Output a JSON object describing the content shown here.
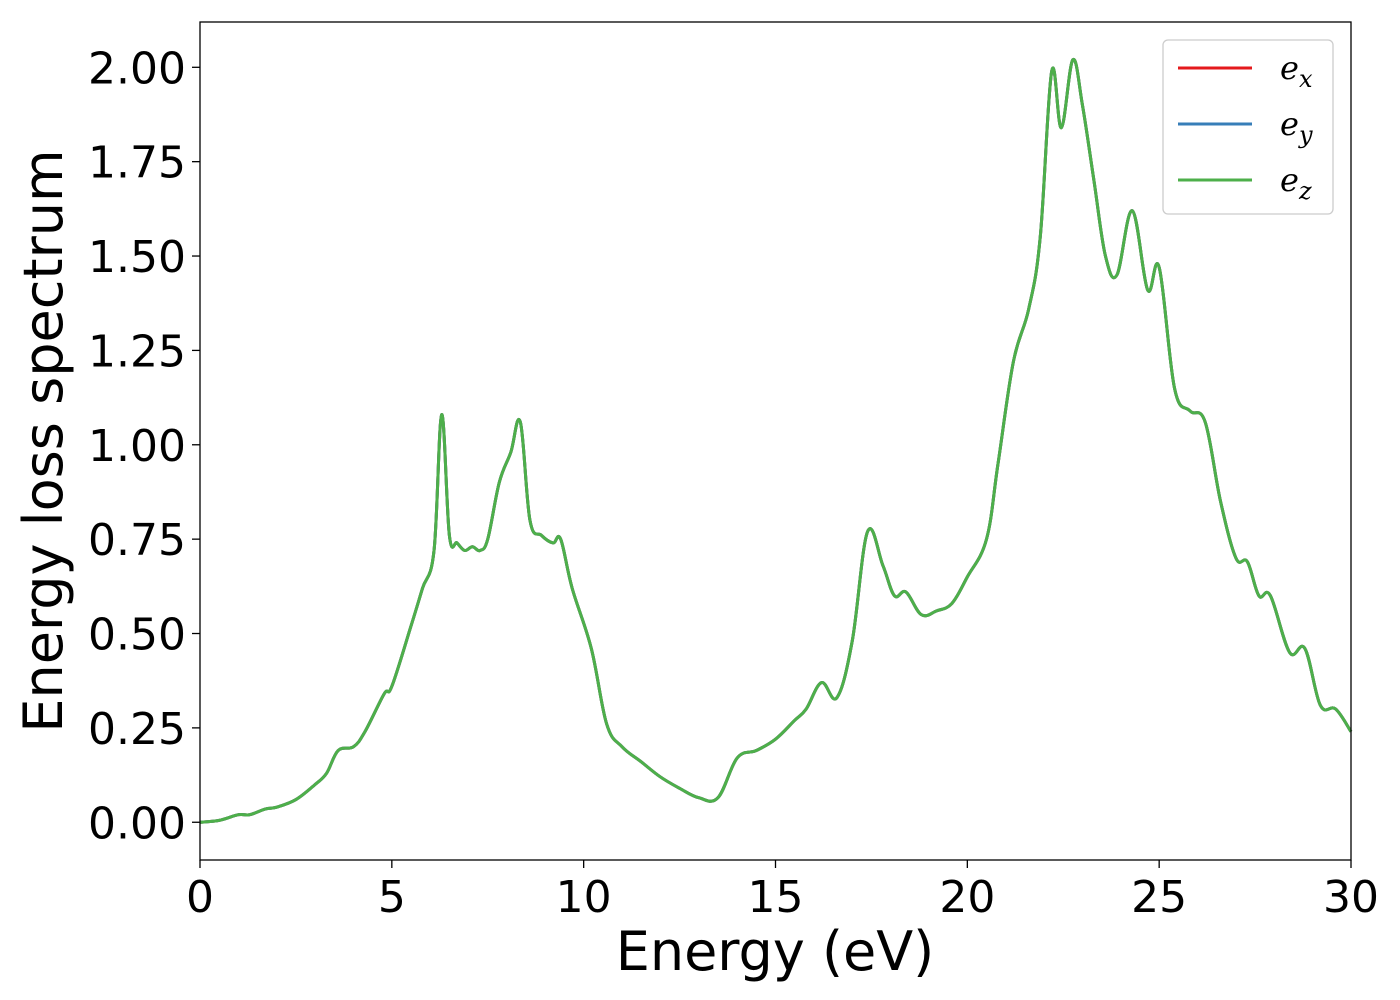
{
  "chart_data": {
    "type": "line",
    "xlabel": "Energy (eV)",
    "ylabel": "Energy loss spectrum",
    "xlim": [
      0,
      30
    ],
    "ylim": [
      -0.1,
      2.12
    ],
    "xticks": [
      0,
      5,
      10,
      15,
      20,
      25,
      30
    ],
    "xtick_labels": [
      "0",
      "5",
      "10",
      "15",
      "20",
      "25",
      "30"
    ],
    "yticks": [
      0,
      0.25,
      0.5,
      0.75,
      1.0,
      1.25,
      1.5,
      1.75,
      2.0
    ],
    "ytick_labels": [
      "0.00",
      "0.25",
      "0.50",
      "0.75",
      "1.00",
      "1.25",
      "1.50",
      "1.75",
      "2.00"
    ],
    "grid": false,
    "legend_position": "top-right",
    "x": [
      0,
      0.5,
      1.0,
      1.3,
      1.7,
      2.0,
      2.5,
      3.0,
      3.3,
      3.6,
      4.0,
      4.3,
      4.8,
      5.0,
      5.5,
      5.8,
      6.1,
      6.3,
      6.5,
      6.7,
      6.9,
      7.1,
      7.3,
      7.5,
      7.8,
      8.1,
      8.35,
      8.6,
      8.9,
      9.2,
      9.4,
      9.7,
      10.2,
      10.6,
      11.0,
      11.5,
      12.0,
      12.5,
      13.0,
      13.5,
      14.0,
      14.5,
      15.0,
      15.5,
      15.8,
      16.2,
      16.6,
      17.0,
      17.4,
      17.8,
      18.1,
      18.4,
      18.8,
      19.2,
      19.6,
      20.0,
      20.5,
      20.8,
      21.2,
      21.6,
      21.9,
      22.2,
      22.45,
      22.75,
      23.0,
      23.3,
      23.6,
      23.9,
      24.3,
      24.7,
      25.0,
      25.4,
      25.8,
      26.2,
      26.6,
      27.0,
      27.3,
      27.6,
      27.9,
      28.4,
      28.8,
      29.2,
      29.6,
      30.0
    ],
    "series": [
      {
        "name": "e_x",
        "color": "#e41a1c",
        "values": [
          0.0,
          0.005,
          0.02,
          0.02,
          0.035,
          0.04,
          0.06,
          0.1,
          0.13,
          0.19,
          0.2,
          0.24,
          0.34,
          0.36,
          0.52,
          0.62,
          0.72,
          1.08,
          0.76,
          0.74,
          0.72,
          0.73,
          0.72,
          0.75,
          0.9,
          0.98,
          1.06,
          0.8,
          0.76,
          0.74,
          0.75,
          0.62,
          0.46,
          0.26,
          0.2,
          0.16,
          0.12,
          0.09,
          0.065,
          0.065,
          0.17,
          0.19,
          0.22,
          0.27,
          0.3,
          0.37,
          0.33,
          0.48,
          0.77,
          0.68,
          0.6,
          0.61,
          0.55,
          0.56,
          0.58,
          0.65,
          0.75,
          0.95,
          1.22,
          1.36,
          1.55,
          1.99,
          1.84,
          2.02,
          1.9,
          1.7,
          1.5,
          1.45,
          1.62,
          1.41,
          1.47,
          1.15,
          1.09,
          1.06,
          0.85,
          0.7,
          0.69,
          0.6,
          0.6,
          0.45,
          0.46,
          0.31,
          0.3,
          0.24
        ]
      },
      {
        "name": "e_y",
        "color": "#377eb8",
        "values": [
          0.0,
          0.005,
          0.02,
          0.02,
          0.035,
          0.04,
          0.06,
          0.1,
          0.13,
          0.19,
          0.2,
          0.24,
          0.34,
          0.36,
          0.52,
          0.62,
          0.72,
          1.08,
          0.76,
          0.74,
          0.72,
          0.73,
          0.72,
          0.75,
          0.9,
          0.98,
          1.06,
          0.8,
          0.76,
          0.74,
          0.75,
          0.62,
          0.46,
          0.26,
          0.2,
          0.16,
          0.12,
          0.09,
          0.065,
          0.065,
          0.17,
          0.19,
          0.22,
          0.27,
          0.3,
          0.37,
          0.33,
          0.48,
          0.77,
          0.68,
          0.6,
          0.61,
          0.55,
          0.56,
          0.58,
          0.65,
          0.75,
          0.95,
          1.22,
          1.36,
          1.55,
          1.99,
          1.84,
          2.02,
          1.9,
          1.7,
          1.5,
          1.45,
          1.62,
          1.41,
          1.47,
          1.15,
          1.09,
          1.06,
          0.85,
          0.7,
          0.69,
          0.6,
          0.6,
          0.45,
          0.46,
          0.31,
          0.3,
          0.24
        ]
      },
      {
        "name": "e_z",
        "color": "#4daf4a",
        "values": [
          0.0,
          0.005,
          0.02,
          0.02,
          0.035,
          0.04,
          0.06,
          0.1,
          0.13,
          0.19,
          0.2,
          0.24,
          0.34,
          0.36,
          0.52,
          0.62,
          0.72,
          1.08,
          0.76,
          0.74,
          0.72,
          0.73,
          0.72,
          0.75,
          0.9,
          0.98,
          1.06,
          0.8,
          0.76,
          0.74,
          0.75,
          0.62,
          0.46,
          0.26,
          0.2,
          0.16,
          0.12,
          0.09,
          0.065,
          0.065,
          0.17,
          0.19,
          0.22,
          0.27,
          0.3,
          0.37,
          0.33,
          0.48,
          0.77,
          0.68,
          0.6,
          0.61,
          0.55,
          0.56,
          0.58,
          0.65,
          0.75,
          0.95,
          1.22,
          1.36,
          1.55,
          1.99,
          1.84,
          2.02,
          1.9,
          1.7,
          1.5,
          1.45,
          1.62,
          1.41,
          1.47,
          1.15,
          1.09,
          1.06,
          0.85,
          0.7,
          0.69,
          0.6,
          0.6,
          0.45,
          0.46,
          0.31,
          0.3,
          0.24
        ]
      }
    ],
    "legend": [
      {
        "base": "e",
        "sub": "x",
        "color": "#e41a1c"
      },
      {
        "base": "e",
        "sub": "y",
        "color": "#377eb8"
      },
      {
        "base": "e",
        "sub": "z",
        "color": "#4daf4a"
      }
    ]
  }
}
